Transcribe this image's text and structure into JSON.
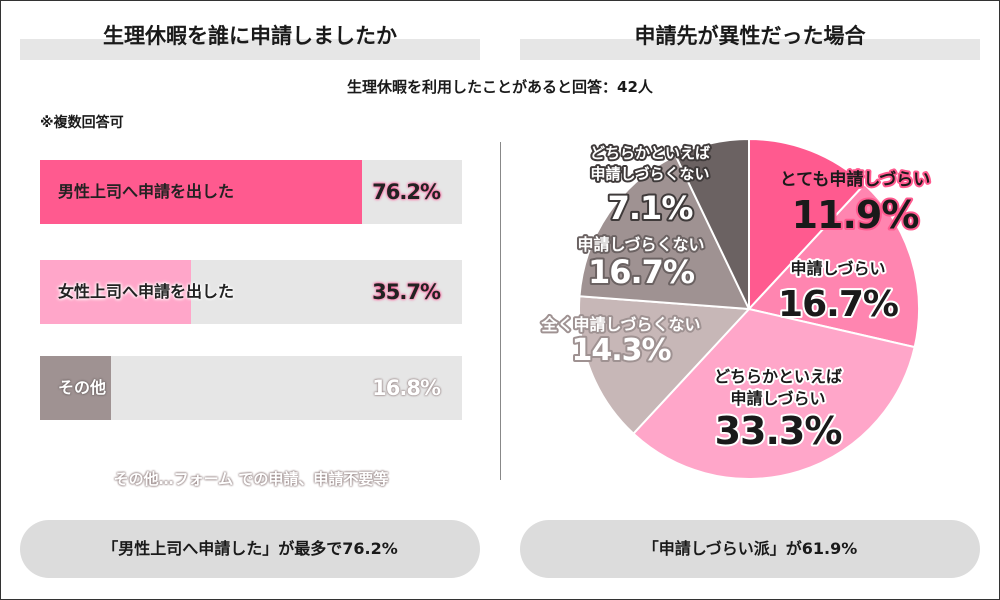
{
  "left_panel": {
    "title": "生理休暇を誰に申請しましたか",
    "note": "※複数回答可",
    "footnote": "その他…フォーム での申請、申請不要等",
    "summary": "「男性上司へ申請した」が最多で76.2%"
  },
  "right_panel": {
    "title": "申請先が異性だった場合",
    "summary": "「申請しづらい派」が61.9%"
  },
  "subtitle": "生理休暇を利用したことがあると回答：42人",
  "colors": {
    "pink_strong": "#ff5a8f",
    "pink_medium": "#ff85b0",
    "pink_light": "#ffa6c9",
    "gray_light": "#c7b7b7",
    "gray_medium": "#9f9292",
    "gray_dark": "#6b6262",
    "track": "#e6e6e6"
  },
  "chart_data": [
    {
      "type": "bar",
      "orientation": "horizontal",
      "title": "生理休暇を誰に申請しましたか",
      "unit": "%",
      "categories": [
        "男性上司へ申請を出した",
        "女性上司へ申請を出した",
        "その他"
      ],
      "values": [
        76.2,
        35.7,
        16.8
      ],
      "value_labels": [
        "76.2%",
        "35.7%",
        "16.8%"
      ],
      "xlim": [
        0,
        100
      ]
    },
    {
      "type": "pie",
      "title": "申請先が異性だった場合",
      "unit": "%",
      "slices": [
        {
          "label_lines": [
            "とても申請しづらい"
          ],
          "value": 11.9,
          "value_label": "11.9%"
        },
        {
          "label_lines": [
            "申請しづらい"
          ],
          "value": 16.7,
          "value_label": "16.7%"
        },
        {
          "label_lines": [
            "どちらかといえば",
            "申請しづらい"
          ],
          "value": 33.3,
          "value_label": "33.3%"
        },
        {
          "label_lines": [
            "全く申請しづらくない"
          ],
          "value": 14.3,
          "value_label": "14.3%"
        },
        {
          "label_lines": [
            "申請しづらくない"
          ],
          "value": 16.7,
          "value_label": "16.7%"
        },
        {
          "label_lines": [
            "どちらかといえば",
            "申請しづらくない"
          ],
          "value": 7.1,
          "value_label": "7.1%"
        }
      ]
    }
  ]
}
